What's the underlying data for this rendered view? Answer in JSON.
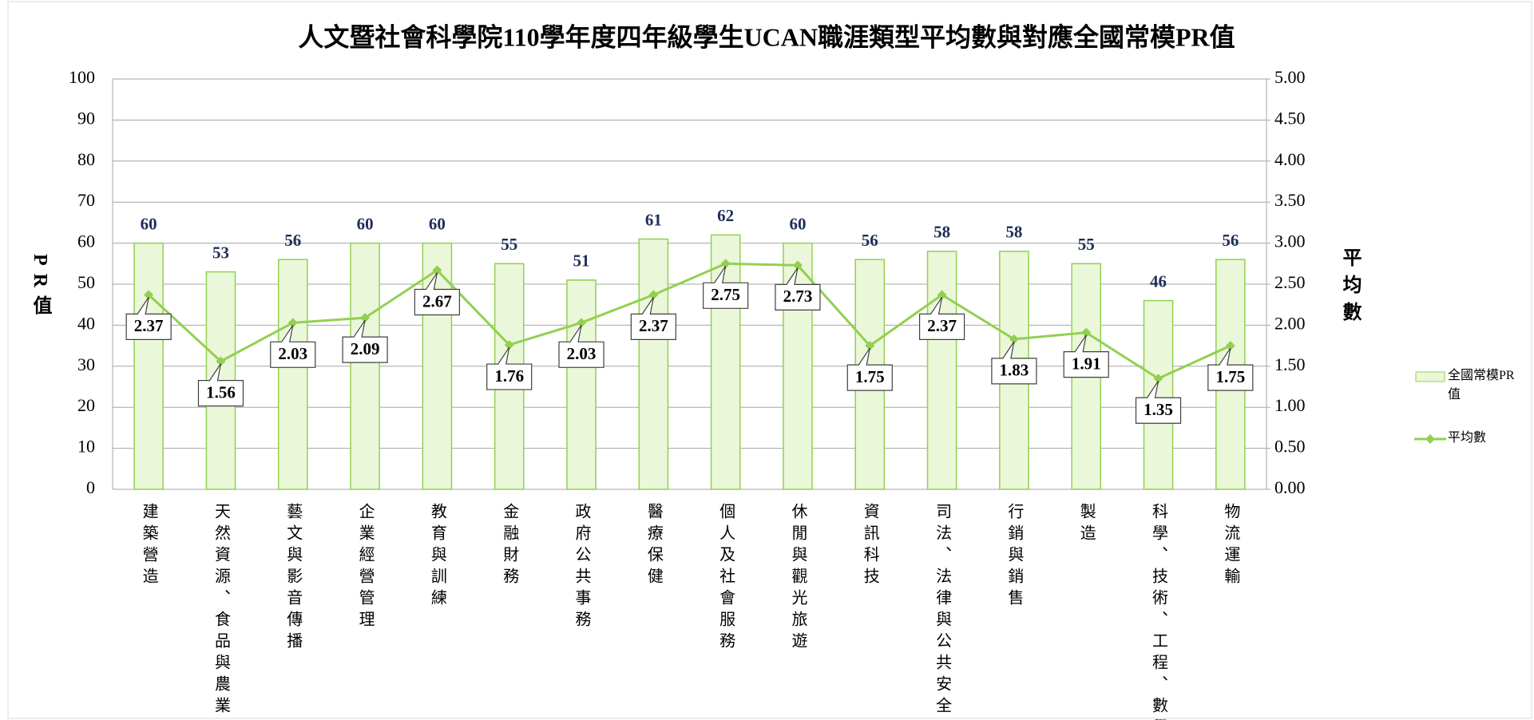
{
  "chart_data": {
    "type": "bar_line",
    "title": "人文暨社會科學院110學年度四年級學生UCAN職涯類型平均數與對應全國常模PR值",
    "ylabel": "PR值",
    "y2label": "平均數",
    "categories": [
      "建築營造",
      "天然資源、食品與農業",
      "藝文與影音傳播",
      "企業經營管理",
      "教育與訓練",
      "金融財務",
      "政府公共事務",
      "醫療保健",
      "個人及社會服務",
      "休閒與觀光旅遊",
      "資訊科技",
      "司法、法律與公共安全",
      "行銷與銷售",
      "製造",
      "科學、技術、工程、數學",
      "物流運輸"
    ],
    "series": [
      {
        "name": "全國常模PR值",
        "type": "bar",
        "color": "#92d050",
        "fill": "#ebf7d9",
        "axis": "y",
        "values": [
          60,
          53,
          56,
          60,
          60,
          55,
          51,
          61,
          62,
          60,
          56,
          58,
          58,
          55,
          46,
          56
        ]
      },
      {
        "name": "平均數",
        "type": "line",
        "color": "#92d050",
        "axis": "y2",
        "values": [
          2.37,
          1.56,
          2.03,
          2.09,
          2.67,
          1.76,
          2.03,
          2.37,
          2.75,
          2.73,
          1.75,
          2.37,
          1.83,
          1.91,
          1.35,
          1.75
        ]
      }
    ],
    "ylim": [
      0,
      100
    ],
    "yticks": [
      0,
      10,
      20,
      30,
      40,
      50,
      60,
      70,
      80,
      90,
      100
    ],
    "y2lim": [
      0,
      5
    ],
    "y2ticks": [
      {
        "value": 0,
        "label": "0.00"
      },
      {
        "value": 0.5,
        "label": "0.50"
      },
      {
        "value": 1,
        "label": "1.00"
      },
      {
        "value": 1.5,
        "label": "1.50"
      },
      {
        "value": 2,
        "label": "2.00"
      },
      {
        "value": 2.5,
        "label": "2.50"
      },
      {
        "value": 3,
        "label": "3.00"
      },
      {
        "value": 3.5,
        "label": "3.50"
      },
      {
        "value": 4,
        "label": "4.00"
      },
      {
        "value": 4.5,
        "label": "4.50"
      },
      {
        "value": 5,
        "label": "5.00"
      }
    ],
    "grid": true,
    "legend": "right"
  }
}
